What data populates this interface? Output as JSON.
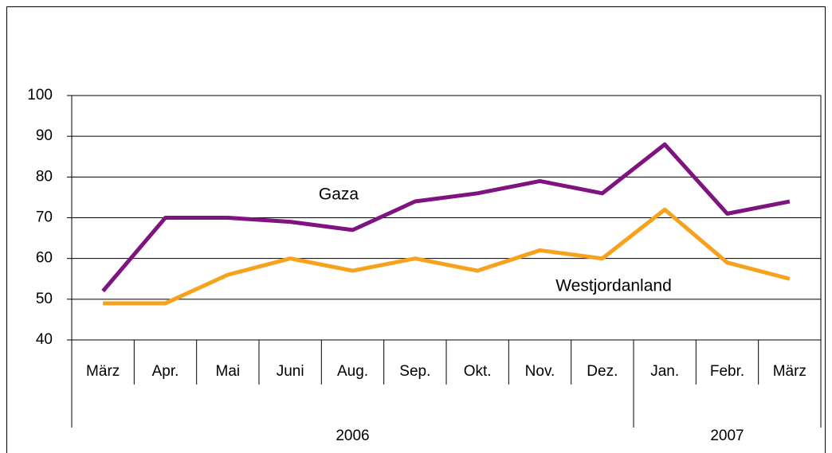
{
  "chart_data": {
    "type": "line",
    "categories": [
      "März",
      "Apr.",
      "Mai",
      "Juni",
      "Aug.",
      "Sep.",
      "Okt.",
      "Nov.",
      "Dez.",
      "Jan.",
      "Febr.",
      "März"
    ],
    "category_years": [
      "2006",
      "2006",
      "2006",
      "2006",
      "2006",
      "2006",
      "2006",
      "2006",
      "2006",
      "2007",
      "2007",
      "2007"
    ],
    "series": [
      {
        "name": "Gaza",
        "color": "#7f137f",
        "values": [
          52,
          70,
          70,
          69,
          67,
          74,
          76,
          79,
          76,
          88,
          71,
          74
        ]
      },
      {
        "name": "Westjordanland",
        "color": "#f7a21c",
        "values": [
          49,
          49,
          56,
          60,
          57,
          60,
          57,
          62,
          60,
          72,
          59,
          55
        ]
      }
    ],
    "ylim": [
      40,
      100
    ],
    "yticks": [
      40,
      50,
      60,
      70,
      80,
      90,
      100
    ],
    "grid": true
  }
}
